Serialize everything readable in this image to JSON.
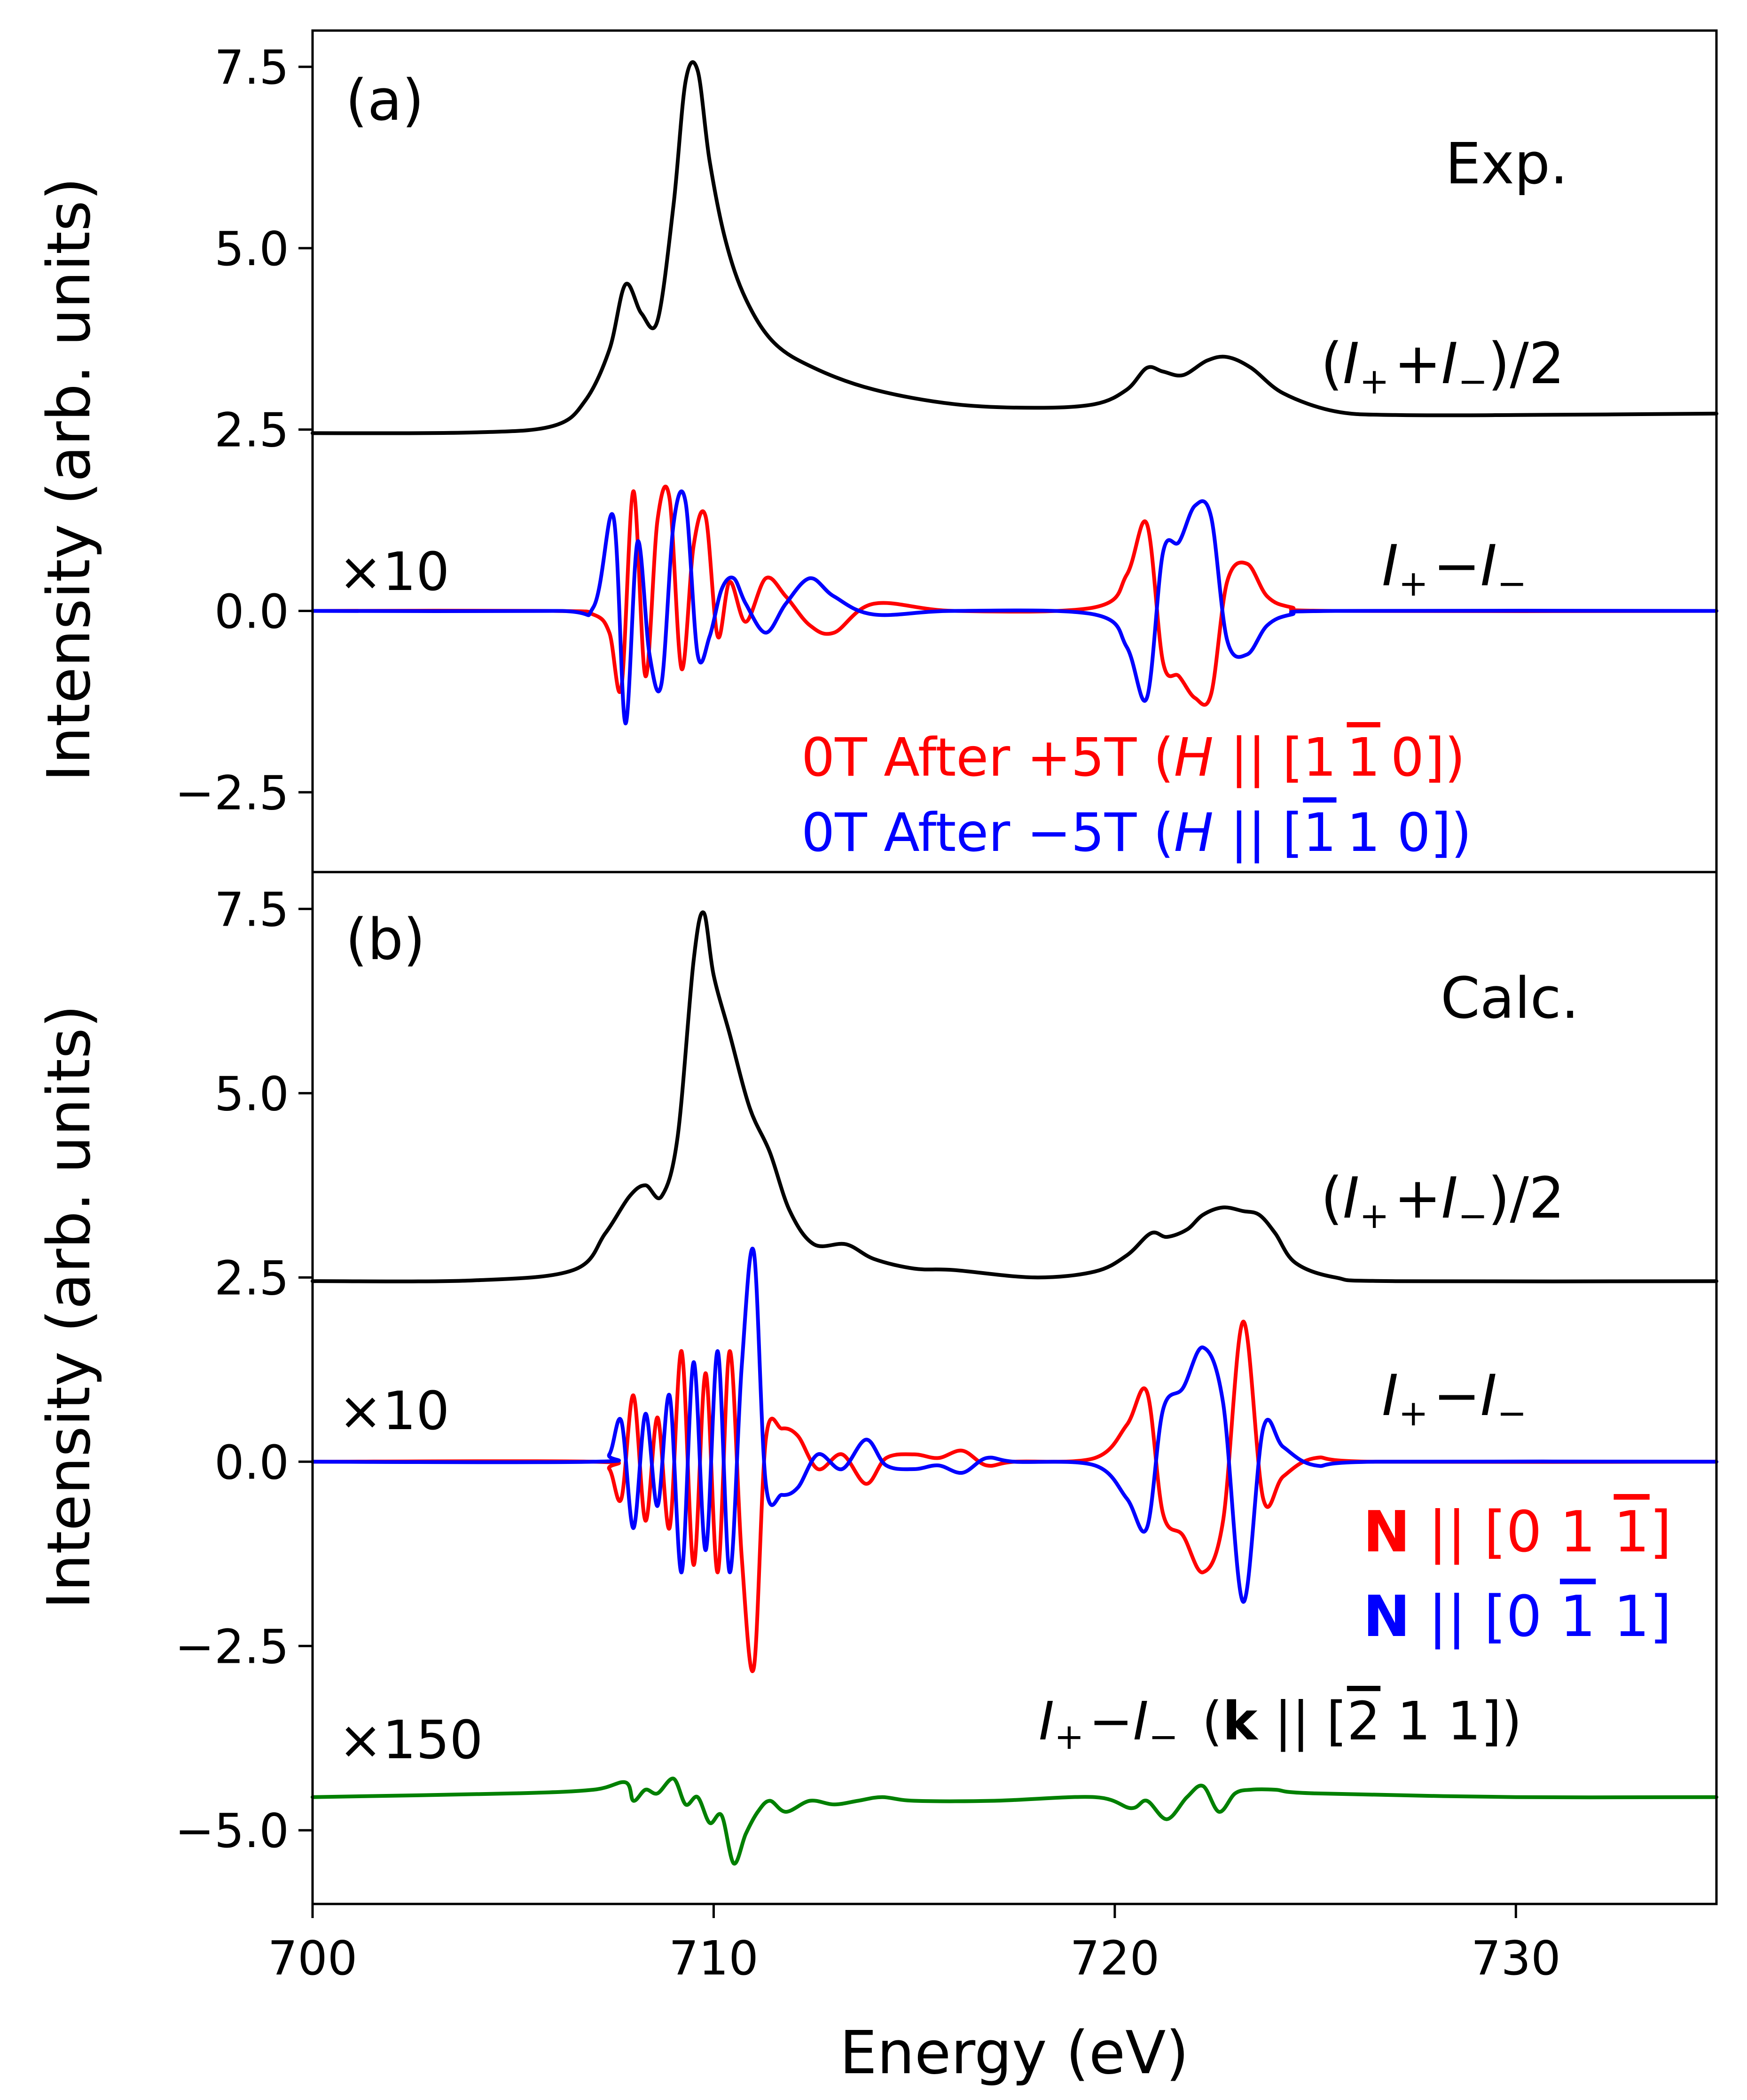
{
  "chart_data": {
    "type": "line",
    "xlabel": "Energy (eV)",
    "ylabel": "Intensity (arb. units)",
    "xlim": [
      700,
      735
    ],
    "xticks": [
      "700",
      "710",
      "720",
      "730"
    ],
    "yticks": [
      "7.5",
      "5.0",
      "2.5",
      "0.0",
      "−2.5",
      "−5.0"
    ],
    "colors": {
      "black": "#000000",
      "red": "#ff0000",
      "blue": "#0000ff",
      "green": "#008000"
    },
    "panels": [
      {
        "id": "a",
        "label": "(a)",
        "ylim": [
          -3.6,
          8.0
        ],
        "title": "Exp.",
        "multiplier": "×10",
        "sum_label": {
          "open": "(",
          "i1": "I",
          "s1": "+",
          "op": "+",
          "i2": "I",
          "s2": "−",
          "close": ")/2"
        },
        "diff_label": {
          "i1": "I",
          "s1": "+",
          "op": "−",
          "i2": "I",
          "s2": "−"
        },
        "legend": [
          {
            "color": "red",
            "pre": "0T After +5T (",
            "H": "H",
            "mid": " || [1",
            "bar1": "1",
            "rest": "0])",
            "overbar_index": 1
          },
          {
            "color": "blue",
            "pre": "0T After −5T (",
            "H": "H",
            "mid": " || [",
            "bar1": "1",
            "rest": "1 0])",
            "overbar_index": 0
          }
        ],
        "series": [
          {
            "name": "(I+ + I−)/2",
            "color": "black",
            "x": [
              700,
              704,
              706,
              706.8,
              707.4,
              707.8,
              708.2,
              708.6,
              709.0,
              709.3,
              709.6,
              709.9,
              710.3,
              710.8,
              711.5,
              712.5,
              714,
              716,
              718,
              719.5,
              720.3,
              720.8,
              721.2,
              721.7,
              722.3,
              722.8,
              723.4,
              724.2,
              725.5,
              727,
              730,
              735
            ],
            "values": [
              2.45,
              2.46,
              2.55,
              2.9,
              3.6,
              4.5,
              4.1,
              4.0,
              5.6,
              7.3,
              7.45,
              6.2,
              5.1,
              4.3,
              3.7,
              3.35,
              3.05,
              2.85,
              2.8,
              2.85,
              3.05,
              3.35,
              3.3,
              3.25,
              3.45,
              3.5,
              3.35,
              3.0,
              2.75,
              2.7,
              2.7,
              2.72
            ]
          },
          {
            "name": "0T After +5T",
            "color": "red",
            "x": [
              700,
              706,
              707,
              707.4,
              707.7,
              708.0,
              708.3,
              708.6,
              708.9,
              709.2,
              709.5,
              709.8,
              710.1,
              710.4,
              710.8,
              711.3,
              711.8,
              712.4,
              713,
              714,
              716,
              719.5,
              720.3,
              720.8,
              721.2,
              721.6,
              722.0,
              722.4,
              722.8,
              723.3,
              723.8,
              724.4,
              725.5,
              735
            ],
            "values": [
              0,
              0,
              -0.05,
              -0.3,
              -1.05,
              1.65,
              -0.9,
              1.25,
              1.55,
              -0.8,
              0.9,
              1.3,
              -0.35,
              0.4,
              -0.15,
              0.45,
              0.2,
              -0.2,
              -0.3,
              0.1,
              0,
              0.05,
              0.5,
              1.2,
              -0.7,
              -0.9,
              -1.2,
              -1.15,
              0.4,
              0.65,
              0.2,
              0.05,
              0,
              0
            ]
          },
          {
            "name": "0T After −5T",
            "color": "blue",
            "x": [
              700,
              706,
              707,
              707.5,
              707.8,
              708.1,
              708.4,
              708.7,
              709.0,
              709.3,
              709.6,
              709.9,
              710.2,
              710.5,
              710.8,
              711.3,
              711.8,
              712.4,
              713,
              714,
              716,
              719.5,
              720.3,
              720.8,
              721.2,
              721.6,
              722.0,
              722.4,
              722.8,
              723.3,
              723.8,
              724.4,
              725.5,
              735
            ],
            "values": [
              0,
              0,
              0.05,
              1.3,
              -1.55,
              0.95,
              -0.6,
              -1.0,
              1.2,
              1.5,
              -0.6,
              -0.35,
              0.3,
              0.45,
              0.1,
              -0.3,
              0.1,
              0.45,
              0.2,
              -0.05,
              0,
              -0.05,
              -0.5,
              -1.2,
              0.8,
              0.95,
              1.45,
              1.3,
              -0.4,
              -0.6,
              -0.2,
              -0.05,
              0,
              0
            ]
          }
        ]
      },
      {
        "id": "b",
        "label": "(b)",
        "ylim": [
          -6.0,
          8.0
        ],
        "title": "Calc.",
        "multiplier": "×10",
        "multiplier2": "×150",
        "sum_label": {
          "open": "(",
          "i1": "I",
          "s1": "+",
          "op": "+",
          "i2": "I",
          "s2": "−",
          "close": ")/2"
        },
        "diff_label": {
          "i1": "I",
          "s1": "+",
          "op": "−",
          "i2": "I",
          "s2": "−"
        },
        "legend": [
          {
            "color": "red",
            "N": "N",
            "pre": " || [0 1 ",
            "bar1": "1",
            "post": "]",
            "overbar_index": 2
          },
          {
            "color": "blue",
            "N": "N",
            "pre": " || [0 ",
            "bar1": "1",
            "post": " 1]",
            "overbar_index": 1
          }
        ],
        "k_label": {
          "i1": "I",
          "s1": "+",
          "op": "−",
          "i2": "I",
          "s2": "−",
          "k": "k",
          "pre": "(",
          "mid": " || [",
          "bar1": "2",
          "rest": " 1 1])"
        },
        "series": [
          {
            "name": "(I+ + I−)/2",
            "color": "black",
            "x": [
              700,
              704,
              706.5,
              707.3,
              707.9,
              708.3,
              708.7,
              709.1,
              709.5,
              709.75,
              710.0,
              710.4,
              710.9,
              711.4,
              711.9,
              712.5,
              713.3,
              714.0,
              715,
              716,
              718,
              719.5,
              720.3,
              720.9,
              721.3,
              721.8,
              722.2,
              722.7,
              723.2,
              723.6,
              724.0,
              724.5,
              725.5,
              727,
              735
            ],
            "values": [
              2.45,
              2.46,
              2.6,
              3.1,
              3.6,
              3.75,
              3.6,
              4.4,
              6.8,
              7.45,
              6.6,
              5.8,
              4.8,
              4.2,
              3.4,
              2.95,
              2.95,
              2.75,
              2.62,
              2.6,
              2.5,
              2.58,
              2.8,
              3.1,
              3.05,
              3.15,
              3.35,
              3.45,
              3.4,
              3.35,
              3.1,
              2.7,
              2.5,
              2.45,
              2.45
            ]
          },
          {
            "name": "N || [0 1 -1]",
            "color": "red",
            "x": [
              700,
              707,
              707.4,
              707.7,
              708.0,
              708.3,
              708.6,
              708.9,
              709.2,
              709.5,
              709.8,
              710.1,
              710.4,
              710.7,
              711.0,
              711.3,
              711.7,
              712.1,
              712.6,
              713.2,
              713.8,
              714.3,
              715,
              715.6,
              716.2,
              716.8,
              717.5,
              719.5,
              720.3,
              720.8,
              721.2,
              721.7,
              722.2,
              722.7,
              723.2,
              723.7,
              724.2,
              725,
              726.5,
              735
            ],
            "values": [
              0,
              0,
              -0.1,
              -0.5,
              0.9,
              -0.8,
              0.6,
              -0.9,
              1.5,
              -1.4,
              1.2,
              -1.5,
              1.5,
              -1.3,
              -2.8,
              0.3,
              0.45,
              0.35,
              -0.1,
              0.1,
              -0.3,
              0.05,
              0.1,
              0.05,
              0.15,
              -0.05,
              0,
              0.05,
              0.5,
              0.95,
              -0.7,
              -1.0,
              -1.5,
              -0.8,
              1.9,
              -0.5,
              -0.2,
              0.05,
              0,
              0
            ]
          },
          {
            "name": "N || [0 -1 1]",
            "color": "blue",
            "x": [
              700,
              707,
              707.4,
              707.7,
              708.0,
              708.3,
              708.6,
              708.9,
              709.2,
              709.5,
              709.8,
              710.1,
              710.4,
              710.7,
              711.0,
              711.3,
              711.7,
              712.1,
              712.6,
              713.2,
              713.8,
              714.3,
              715,
              715.6,
              716.2,
              716.8,
              717.5,
              719.5,
              720.3,
              720.8,
              721.2,
              721.7,
              722.2,
              722.7,
              723.2,
              723.7,
              724.2,
              725,
              726.5,
              735
            ],
            "values": [
              0,
              0,
              0.1,
              0.55,
              -0.9,
              0.65,
              -0.6,
              0.9,
              -1.5,
              1.35,
              -1.2,
              1.5,
              -1.5,
              1.3,
              2.85,
              -0.3,
              -0.45,
              -0.35,
              0.1,
              -0.1,
              0.3,
              -0.05,
              -0.1,
              -0.05,
              -0.15,
              0.05,
              0,
              -0.05,
              -0.5,
              -0.9,
              0.7,
              1.0,
              1.55,
              0.8,
              -1.9,
              0.45,
              0.2,
              -0.05,
              0,
              0
            ]
          },
          {
            "name": "I+ − I− (k || [-2 1 1])",
            "color": "green",
            "x": [
              700,
              705,
              707,
              707.8,
              708.0,
              708.3,
              708.6,
              709.0,
              709.3,
              709.6,
              709.9,
              710.2,
              710.5,
              710.8,
              711.1,
              711.4,
              711.8,
              712.4,
              713,
              713.6,
              714.2,
              715,
              717,
              719.5,
              720.4,
              720.8,
              721.3,
              721.8,
              722.2,
              722.6,
              723.0,
              723.4,
              724,
              725,
              730,
              735
            ],
            "values": [
              -4.55,
              -4.5,
              -4.45,
              -4.35,
              -4.6,
              -4.45,
              -4.5,
              -4.3,
              -4.65,
              -4.55,
              -4.9,
              -4.8,
              -5.45,
              -5.05,
              -4.75,
              -4.6,
              -4.75,
              -4.6,
              -4.65,
              -4.6,
              -4.55,
              -4.6,
              -4.6,
              -4.55,
              -4.7,
              -4.6,
              -4.85,
              -4.55,
              -4.4,
              -4.75,
              -4.5,
              -4.45,
              -4.45,
              -4.5,
              -4.55,
              -4.55
            ]
          }
        ]
      }
    ]
  }
}
